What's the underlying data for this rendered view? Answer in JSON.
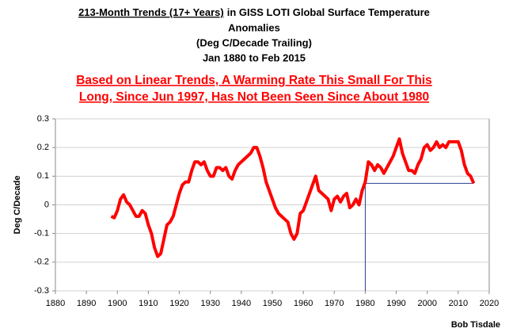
{
  "chart_data": {
    "type": "line",
    "title": [
      [
        "213-Month Trends (17+ Years)",
        "in GISS LOTI Global Surface Temperature"
      ],
      "Anomalies",
      "(Deg C/Decade Trailing)",
      "Jan 1880 to Feb 2015"
    ],
    "subtitle": [
      "Based on Linear Trends, A Warming Rate This Small For This",
      "Long, Since Jun 1997, Has Not Been Seen Since About 1980"
    ],
    "y_label": "Deg C/Decade",
    "credit": "Bob Tisdale",
    "xlim": [
      1880,
      2020
    ],
    "xticks": [
      1880,
      1890,
      1900,
      1910,
      1920,
      1930,
      1940,
      1950,
      1960,
      1970,
      1980,
      1990,
      2000,
      2010,
      2020
    ],
    "ylim": [
      -0.3,
      0.3
    ],
    "yticks": [
      -0.3,
      -0.2,
      -0.1,
      0,
      0.1,
      0.2,
      0.3
    ],
    "grid": true,
    "reference": {
      "x": 1980,
      "y": 0.075,
      "color": "#2a3f8f"
    },
    "x": [
      1898,
      1899,
      1900,
      1901,
      1902,
      1903,
      1904,
      1905,
      1906,
      1907,
      1908,
      1909,
      1910,
      1911,
      1912,
      1913,
      1914,
      1915,
      1916,
      1917,
      1918,
      1919,
      1920,
      1921,
      1922,
      1923,
      1924,
      1925,
      1926,
      1927,
      1928,
      1929,
      1930,
      1931,
      1932,
      1933,
      1934,
      1935,
      1936,
      1937,
      1938,
      1939,
      1940,
      1941,
      1942,
      1943,
      1944,
      1945,
      1946,
      1947,
      1948,
      1949,
      1950,
      1951,
      1952,
      1953,
      1954,
      1955,
      1956,
      1957,
      1958,
      1959,
      1960,
      1961,
      1962,
      1963,
      1964,
      1965,
      1966,
      1967,
      1968,
      1969,
      1970,
      1971,
      1972,
      1973,
      1974,
      1975,
      1976,
      1977,
      1978,
      1979,
      1980,
      1981,
      1982,
      1983,
      1984,
      1985,
      1986,
      1987,
      1988,
      1989,
      1990,
      1991,
      1992,
      1993,
      1994,
      1995,
      1996,
      1997,
      1998,
      1999,
      2000,
      2001,
      2002,
      2003,
      2004,
      2005,
      2006,
      2007,
      2008,
      2009,
      2010,
      2011,
      2012,
      2013,
      2014,
      2015
    ],
    "series": [
      {
        "name": "213-Month Trends",
        "color": "#ff0000",
        "values": [
          -0.04,
          -0.045,
          -0.02,
          0.02,
          0.035,
          0.01,
          0.0,
          -0.02,
          -0.04,
          -0.04,
          -0.02,
          -0.03,
          -0.07,
          -0.1,
          -0.15,
          -0.18,
          -0.17,
          -0.12,
          -0.07,
          -0.06,
          -0.04,
          0.0,
          0.04,
          0.07,
          0.08,
          0.08,
          0.12,
          0.15,
          0.15,
          0.14,
          0.15,
          0.12,
          0.1,
          0.1,
          0.13,
          0.13,
          0.12,
          0.13,
          0.1,
          0.09,
          0.12,
          0.14,
          0.15,
          0.16,
          0.17,
          0.18,
          0.2,
          0.2,
          0.17,
          0.13,
          0.08,
          0.05,
          0.02,
          -0.01,
          -0.03,
          -0.04,
          -0.05,
          -0.06,
          -0.1,
          -0.12,
          -0.1,
          -0.03,
          -0.02,
          0.01,
          0.04,
          0.07,
          0.1,
          0.05,
          0.04,
          0.03,
          0.02,
          -0.02,
          0.02,
          0.03,
          0.01,
          0.03,
          0.04,
          -0.01,
          0.0,
          0.02,
          0.0,
          0.05,
          0.08,
          0.15,
          0.14,
          0.12,
          0.14,
          0.13,
          0.11,
          0.13,
          0.15,
          0.17,
          0.2,
          0.23,
          0.18,
          0.15,
          0.12,
          0.12,
          0.11,
          0.14,
          0.16,
          0.2,
          0.21,
          0.19,
          0.2,
          0.22,
          0.2,
          0.21,
          0.2,
          0.22,
          0.22,
          0.22,
          0.22,
          0.19,
          0.14,
          0.11,
          0.1,
          0.075
        ]
      }
    ]
  }
}
